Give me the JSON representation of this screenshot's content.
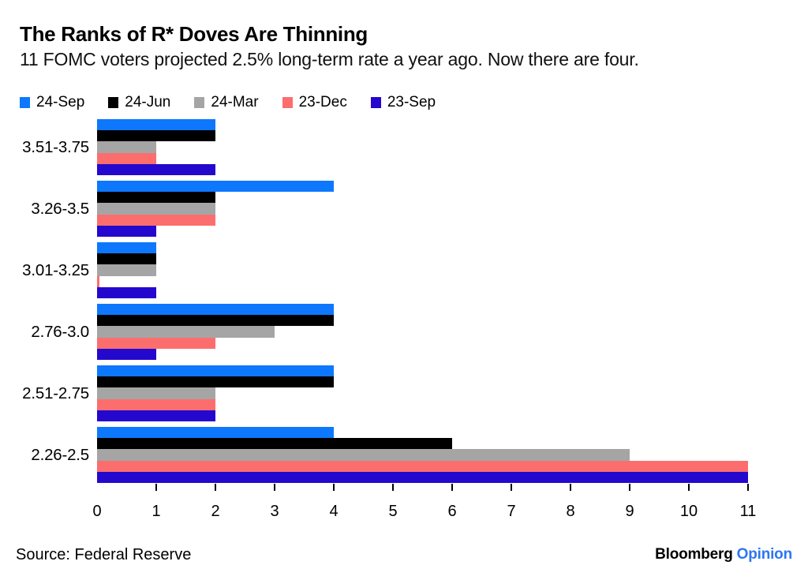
{
  "header": {
    "title": "The Ranks of R* Doves Are Thinning",
    "subtitle": "11 FOMC voters projected 2.5% long-term rate a year ago. Now there are four."
  },
  "chart_data": {
    "type": "bar",
    "orientation": "horizontal",
    "title": "The Ranks of R* Doves Are Thinning",
    "subtitle": "11 FOMC voters projected 2.5% long-term rate a year ago. Now there are four.",
    "categories": [
      "3.51-3.75",
      "3.26-3.5",
      "3.01-3.25",
      "2.76-3.0",
      "2.51-2.75",
      "2.26-2.5"
    ],
    "series": [
      {
        "name": "24-Sep",
        "color": "#0d78fd",
        "values": [
          2,
          4,
          1,
          4,
          4,
          4
        ]
      },
      {
        "name": "24-Jun",
        "color": "#000000",
        "values": [
          2,
          2,
          1,
          4,
          4,
          6
        ]
      },
      {
        "name": "24-Mar",
        "color": "#a5a5a5",
        "values": [
          1,
          2,
          1,
          3,
          2,
          9
        ]
      },
      {
        "name": "23-Dec",
        "color": "#fc6e6e",
        "values": [
          1,
          2,
          0,
          2,
          2,
          11
        ]
      },
      {
        "name": "23-Sep",
        "color": "#2408cd",
        "values": [
          2,
          1,
          1,
          1,
          2,
          11
        ]
      }
    ],
    "xlim": [
      0,
      11
    ],
    "x_ticks": [
      0,
      1,
      2,
      3,
      4,
      5,
      6,
      7,
      8,
      9,
      10,
      11
    ],
    "grid": false,
    "legend_position": "top-left",
    "xlabel": "",
    "ylabel": ""
  },
  "footer": {
    "source": "Source: Federal Reserve",
    "brand_name": "Bloomberg",
    "brand_suffix": "Opinion",
    "brand_suffix_color": "#2d76f0"
  }
}
